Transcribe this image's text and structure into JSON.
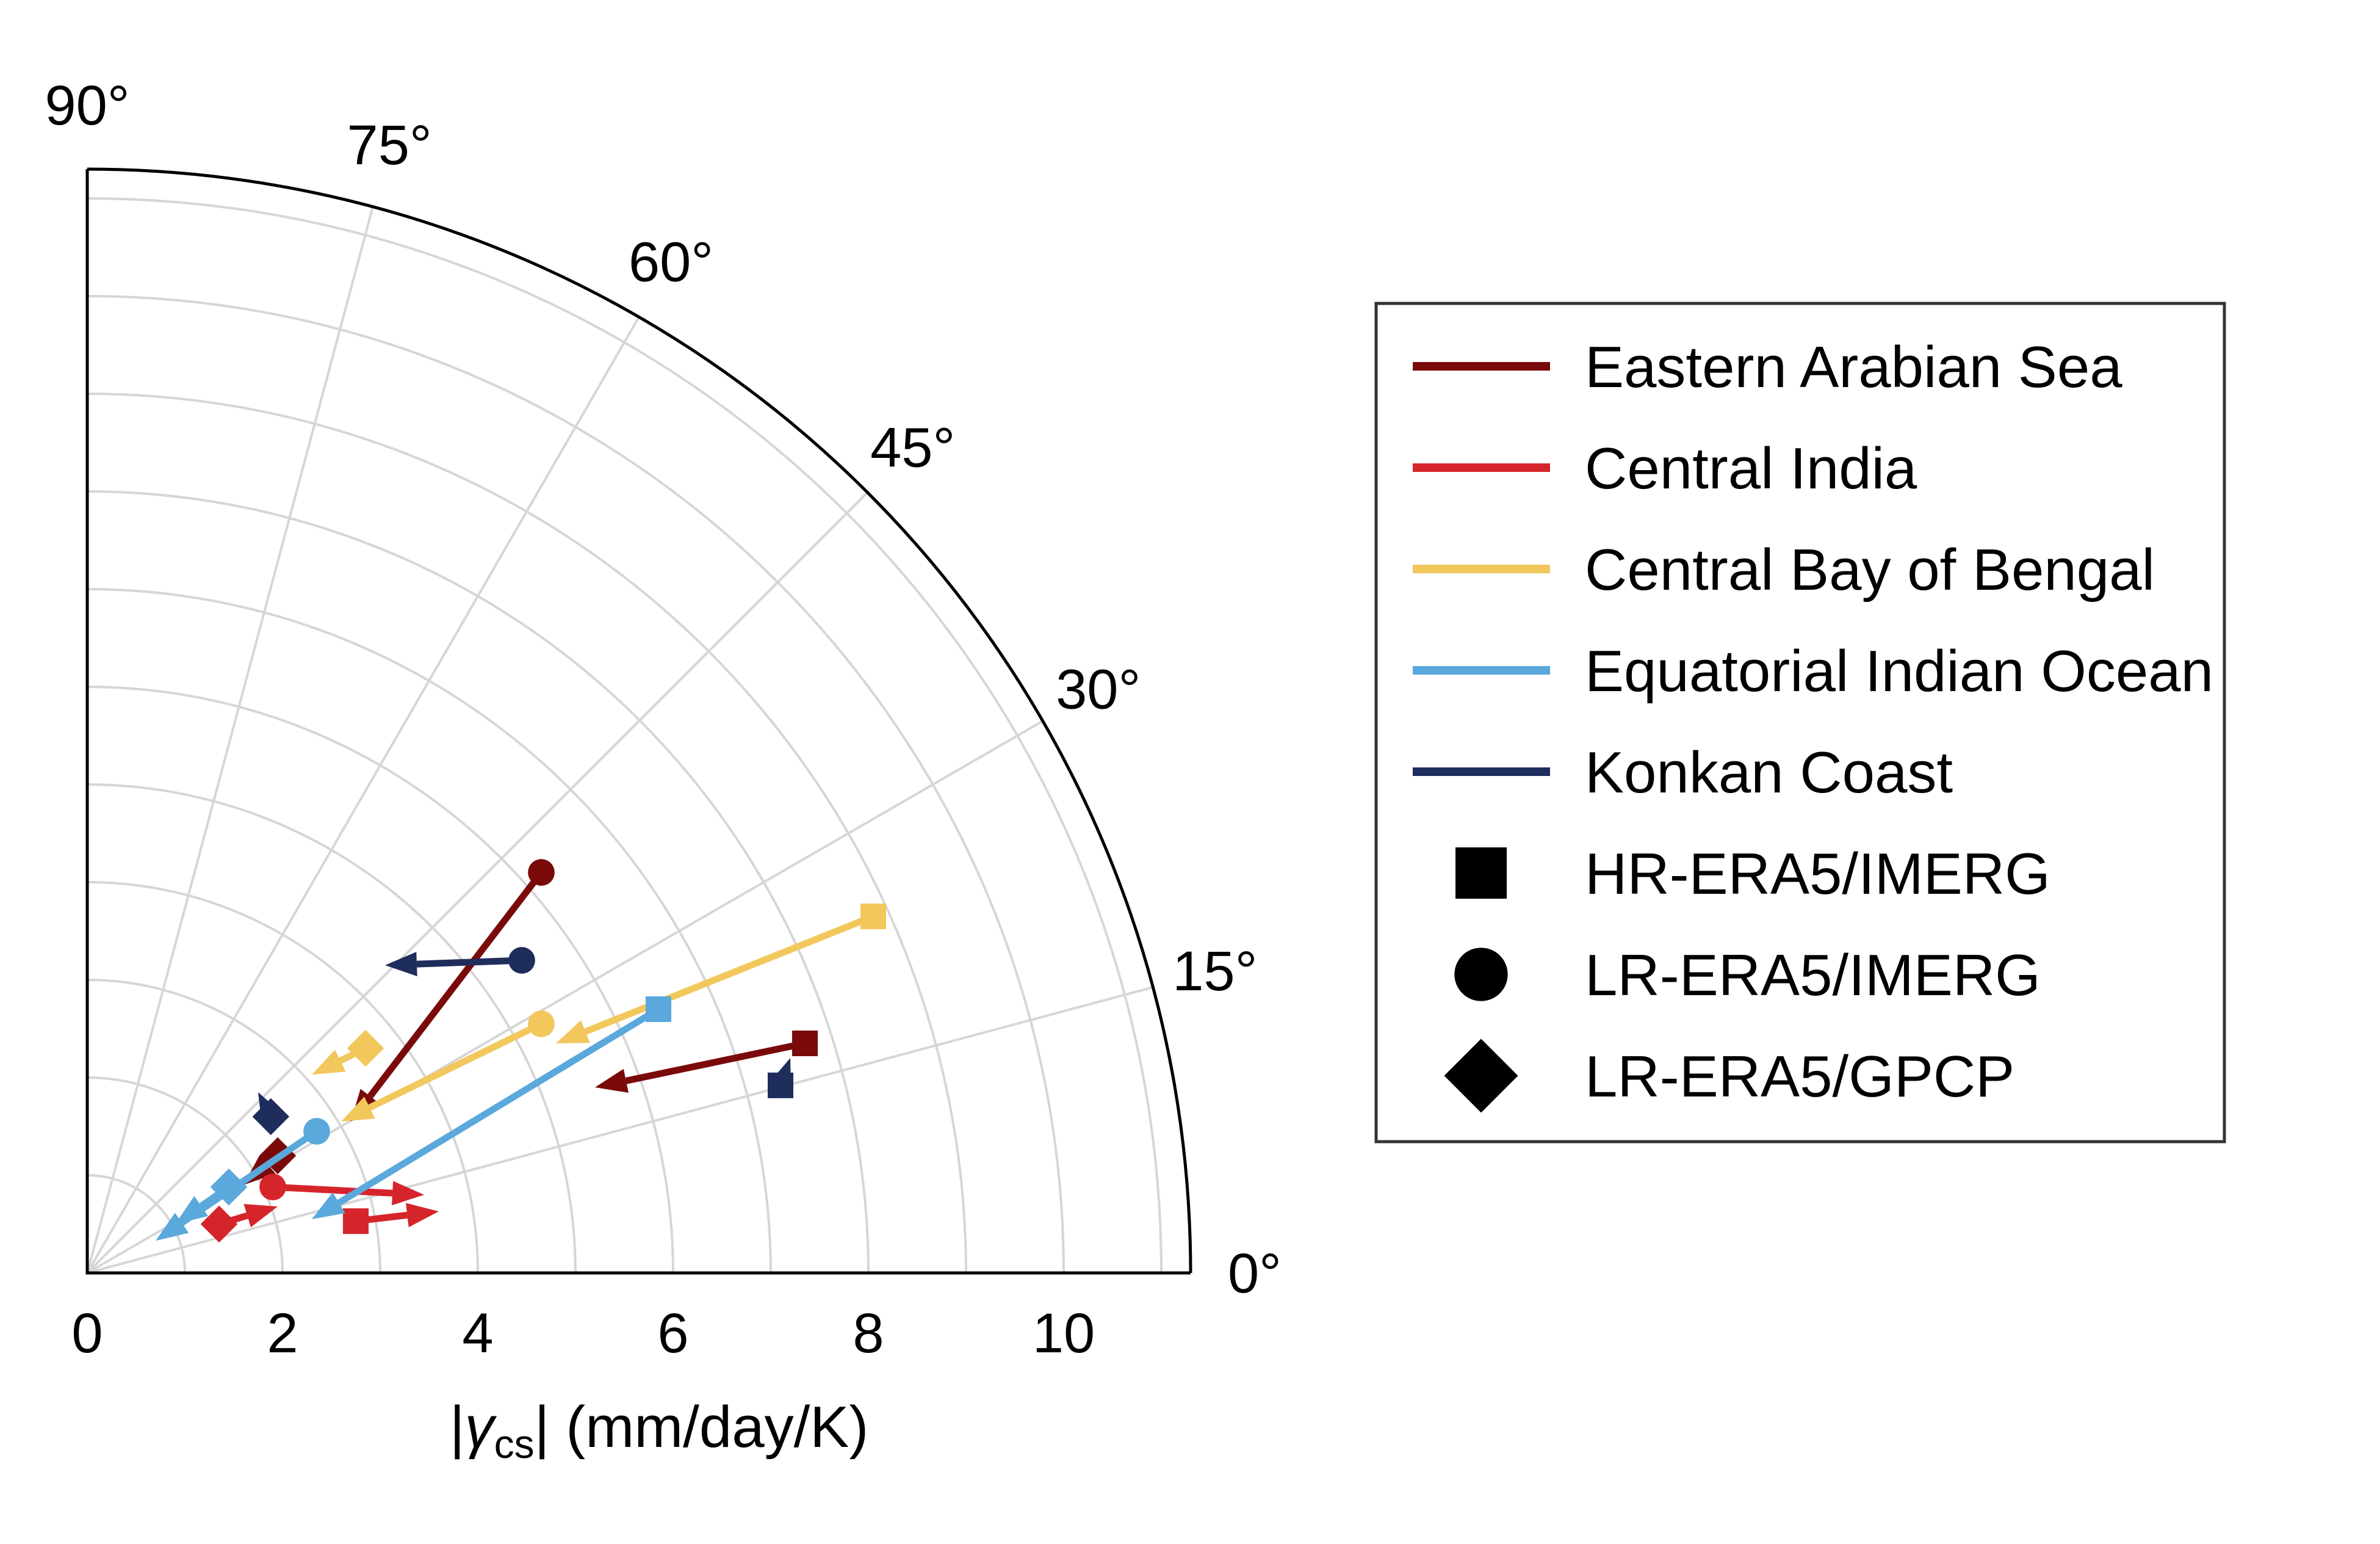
{
  "chart_data": {
    "type": "polar-quadrant-arrows",
    "radial_axis": {
      "label_prefix": "|",
      "label_symbol": "γ",
      "label_subscript": "cs",
      "label_suffix": "| (mm/day/K)",
      "range": [
        0,
        11.3
      ],
      "ticks": [
        0,
        2,
        4,
        6,
        8,
        10
      ]
    },
    "angular_axis": {
      "range_deg": [
        0,
        90
      ],
      "ticks": [
        "0°",
        "15°",
        "30°",
        "45°",
        "60°",
        "75°",
        "90°"
      ],
      "tick_values": [
        0,
        15,
        30,
        45,
        60,
        75,
        90
      ]
    },
    "grid": true,
    "legend": {
      "placement": "right",
      "series": [
        {
          "name": "Eastern Arabian Sea",
          "color": "#7a0a0a"
        },
        {
          "name": "Central India",
          "color": "#d6242b"
        },
        {
          "name": "Central Bay of Bengal",
          "color": "#f2c75c"
        },
        {
          "name": "Equatorial Indian Ocean",
          "color": "#5aa8dc"
        },
        {
          "name": "Konkan Coast",
          "color": "#1f2d5c"
        }
      ],
      "markers": [
        {
          "name": "HR-ERA5/IMERG",
          "shape": "square"
        },
        {
          "name": "LR-ERA5/IMERG",
          "shape": "circle"
        },
        {
          "name": "LR-ERA5/GPCP",
          "shape": "diamond"
        }
      ]
    },
    "arrows": [
      {
        "series": "Eastern Arabian Sea",
        "marker": "square",
        "start": [
          7.35,
          2.35
        ],
        "end": [
          5.2,
          1.9
        ]
      },
      {
        "series": "Eastern Arabian Sea",
        "marker": "circle",
        "start": [
          4.65,
          4.1
        ],
        "end": [
          2.7,
          1.55
        ]
      },
      {
        "series": "Eastern Arabian Sea",
        "marker": "diamond",
        "start": [
          1.95,
          1.2
        ],
        "end": [
          1.6,
          0.9
        ]
      },
      {
        "series": "Central India",
        "marker": "square",
        "start": [
          2.75,
          0.53
        ],
        "end": [
          3.6,
          0.63
        ]
      },
      {
        "series": "Central India",
        "marker": "circle",
        "start": [
          1.9,
          0.88
        ],
        "end": [
          3.45,
          0.8
        ]
      },
      {
        "series": "Central India",
        "marker": "diamond",
        "start": [
          1.35,
          0.5
        ],
        "end": [
          1.95,
          0.68
        ]
      },
      {
        "series": "Central Bay of Bengal",
        "marker": "square",
        "start": [
          8.05,
          3.65
        ],
        "end": [
          4.8,
          2.35
        ]
      },
      {
        "series": "Central Bay of Bengal",
        "marker": "circle",
        "start": [
          4.65,
          2.55
        ],
        "end": [
          2.6,
          1.55
        ]
      },
      {
        "series": "Central Bay of Bengal",
        "marker": "diamond",
        "start": [
          2.85,
          2.3
        ],
        "end": [
          2.3,
          2.03
        ]
      },
      {
        "series": "Equatorial Indian Ocean",
        "marker": "square",
        "start": [
          5.85,
          2.7
        ],
        "end": [
          2.3,
          0.55
        ]
      },
      {
        "series": "Equatorial Indian Ocean",
        "marker": "circle",
        "start": [
          2.35,
          1.45
        ],
        "end": [
          0.7,
          0.33
        ]
      },
      {
        "series": "Equatorial Indian Ocean",
        "marker": "diamond",
        "start": [
          1.45,
          0.88
        ],
        "end": [
          0.9,
          0.5
        ]
      },
      {
        "series": "Konkan Coast",
        "marker": "square",
        "start": [
          7.1,
          1.92
        ],
        "end": [
          7.2,
          2.2
        ]
      },
      {
        "series": "Konkan Coast",
        "marker": "circle",
        "start": [
          4.45,
          3.2
        ],
        "end": [
          3.05,
          3.15
        ]
      },
      {
        "series": "Konkan Coast",
        "marker": "diamond",
        "start": [
          1.88,
          1.6
        ],
        "end": [
          1.75,
          1.85
        ]
      }
    ]
  }
}
